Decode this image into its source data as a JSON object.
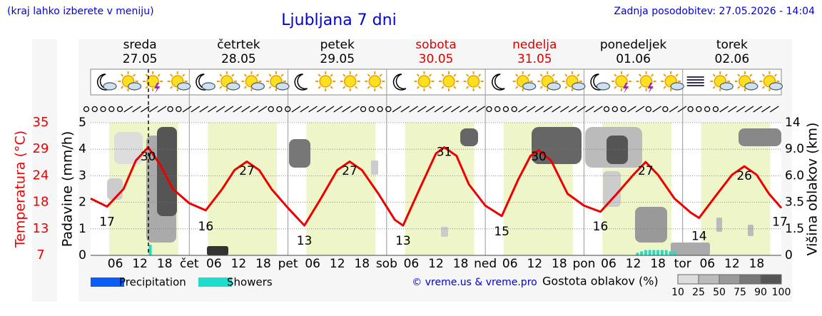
{
  "chart_data": {
    "type": "line",
    "note": "(kraj lahko izberete v meniju)",
    "title": "Ljubljana 7 dni",
    "updated": "Zadnja posodobitev: 27.05.2026 - 14:04",
    "ylabel": "Padavine (mm/h)",
    "ylim": [
      0,
      5
    ],
    "yticks": [
      0,
      1,
      2,
      3,
      4,
      5
    ],
    "temp_label": "Temperatura (°C)",
    "temp_color": "#ee0000",
    "temp_lim": [
      7,
      35
    ],
    "temp_ticks": [
      7,
      {
        "value": 12.6,
        "label": "13"
      },
      {
        "value": 18.2,
        "label": "18"
      },
      {
        "value": 23.8,
        "label": "24"
      },
      {
        "value": 29.4,
        "label": "29"
      },
      35
    ],
    "y2label": "Višina oblakov (km)",
    "y2ticks": [
      0,
      1.5,
      3.5,
      {
        "value": 6,
        "label": "6.0"
      },
      {
        "value": 9,
        "label": "9.0"
      },
      14
    ],
    "xlim": [
      0,
      168
    ],
    "xticks": [
      {
        "value": 6,
        "label": "06"
      },
      12,
      18,
      {
        "value": 24,
        "label": "čet"
      },
      {
        "value": 30,
        "label": "06"
      },
      {
        "value": 36,
        "label": "12"
      },
      {
        "value": 42,
        "label": "18"
      },
      {
        "value": 48,
        "label": "pet"
      },
      {
        "value": 54,
        "label": "06"
      },
      {
        "value": 60,
        "label": "12"
      },
      {
        "value": 66,
        "label": "18"
      },
      {
        "value": 72,
        "label": "sob"
      },
      {
        "value": 78,
        "label": "06"
      },
      {
        "value": 84,
        "label": "12"
      },
      {
        "value": 90,
        "label": "18"
      },
      {
        "value": 96,
        "label": "ned"
      },
      {
        "value": 102,
        "label": "06"
      },
      {
        "value": 108,
        "label": "12"
      },
      {
        "value": 114,
        "label": "18"
      },
      {
        "value": 120,
        "label": "pon"
      },
      {
        "value": 126,
        "label": "06"
      },
      {
        "value": 132,
        "label": "12"
      },
      {
        "value": 138,
        "label": "18"
      },
      {
        "value": 144,
        "label": "tor"
      },
      {
        "value": 150,
        "label": "06"
      },
      {
        "value": 156,
        "label": "12"
      },
      {
        "value": 162,
        "label": "18"
      }
    ],
    "grid": true,
    "days": [
      {
        "name": "sreda",
        "date": "27.05",
        "color": "#000000"
      },
      {
        "name": "četrtek",
        "date": "28.05",
        "color": "#000000"
      },
      {
        "name": "petek",
        "date": "29.05",
        "color": "#000000"
      },
      {
        "name": "sobota",
        "date": "30.05",
        "color": "#dd0000"
      },
      {
        "name": "nedelja",
        "date": "31.05",
        "color": "#dd0000"
      },
      {
        "name": "ponedeljek",
        "date": "01.06",
        "color": "#000000"
      },
      {
        "name": "torek",
        "date": "02.06",
        "color": "#000000"
      }
    ],
    "temperature": {
      "x": [
        0,
        4,
        8,
        11,
        14,
        17,
        20,
        24,
        28,
        32,
        35,
        38,
        41,
        44,
        48,
        52,
        56,
        60,
        63,
        66,
        70,
        74,
        76,
        80,
        84,
        86,
        89,
        92,
        96,
        100,
        104,
        107,
        109,
        112,
        116,
        120,
        124,
        128,
        132,
        135,
        138,
        142,
        146,
        148,
        152,
        156,
        159,
        162,
        165,
        168
      ],
      "values": [
        19,
        17.3,
        21,
        27,
        29.8,
        26,
        21,
        18,
        16.5,
        21,
        25,
        26.8,
        25,
        21,
        17,
        13.3,
        19,
        25,
        26.8,
        25,
        20,
        14.5,
        13.3,
        21,
        28.5,
        29.8,
        28,
        22,
        17.5,
        15.3,
        23,
        28,
        29.2,
        27,
        20,
        17.5,
        16.2,
        20,
        24,
        26.7,
        24,
        19,
        16,
        14.9,
        19.5,
        24,
        25.8,
        24,
        20,
        17
      ]
    },
    "extremes": {
      "x": [
        4,
        14,
        28,
        38,
        52,
        63,
        76,
        86,
        100,
        109,
        124,
        135,
        148,
        159,
        168
      ],
      "values": [
        17,
        30,
        16,
        27,
        13,
        27,
        13,
        31,
        15,
        30,
        16,
        27,
        14,
        26,
        17
      ]
    },
    "series": [
      {
        "name": "Precipitation",
        "color": "#0a5ef5",
        "x": [],
        "values": []
      },
      {
        "name": "Showers",
        "color": "#20dccb",
        "x": [
          14.5,
          133,
          134,
          135,
          136,
          137,
          138,
          139,
          140,
          141,
          142
        ],
        "values": [
          0.4,
          0.1,
          0.15,
          0.2,
          0.2,
          0.2,
          0.2,
          0.2,
          0.2,
          0.15,
          0.15
        ]
      }
    ],
    "credit": "© vreme.us & vreme.pro",
    "cloud_legend": {
      "title": "Gostota oblakov (%)",
      "ticks": [
        10,
        25,
        50,
        75,
        90,
        100
      ]
    }
  }
}
